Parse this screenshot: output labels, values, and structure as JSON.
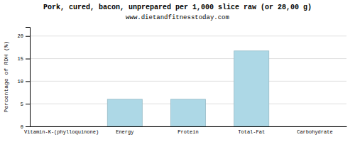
{
  "chart_data": {
    "type": "bar",
    "title": "Pork, cured, bacon, unprepared per 1,000 slice raw (or 28,00 g)",
    "subtitle": "www.dietandfitnesstoday.com",
    "ylabel": "Percentage of RDH (%)",
    "categories": [
      "Vitamin-K-(phylloquinone)",
      "Energy",
      "Protein",
      "Total-Fat",
      "Carbohydrate"
    ],
    "values": [
      0,
      6.0,
      6.0,
      16.7,
      0
    ],
    "color": "#add8e6",
    "ylim": [
      0,
      22
    ],
    "yticks": [
      0,
      5,
      10,
      15,
      20
    ],
    "grid": true
  }
}
